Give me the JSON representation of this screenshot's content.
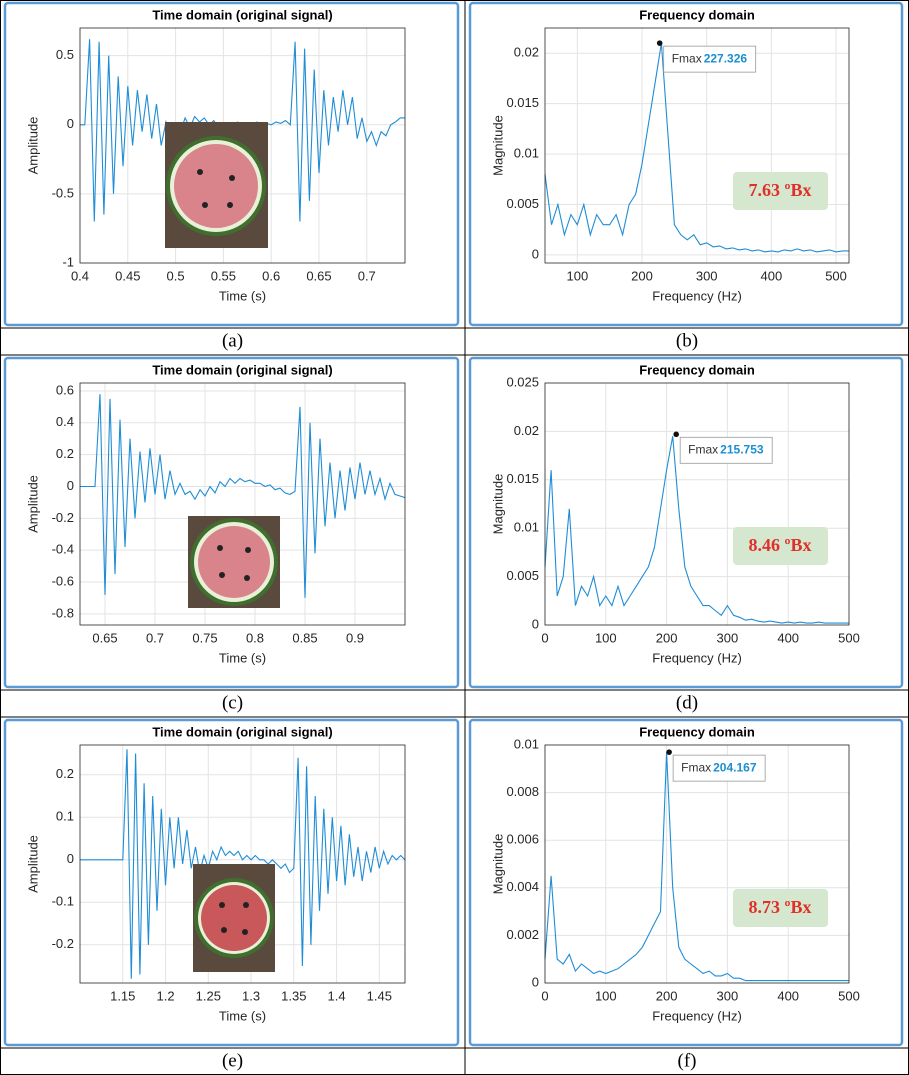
{
  "chart_data": [
    {
      "type": "line",
      "title": "Time domain (original signal)",
      "xlabel": "Time (s)",
      "ylabel": "Amplitude",
      "caption": "(a)",
      "color": "#1f8dd6",
      "grid": true,
      "xlim": [
        0.4,
        0.74
      ],
      "ylim": [
        -1,
        0.7
      ],
      "xticks": [
        0.4,
        0.45,
        0.5,
        0.55,
        0.6,
        0.65,
        0.7
      ],
      "yticks": [
        -1,
        -0.5,
        0,
        0.5
      ],
      "x": [
        0.4,
        0.405,
        0.41,
        0.415,
        0.42,
        0.425,
        0.43,
        0.435,
        0.44,
        0.445,
        0.45,
        0.455,
        0.46,
        0.465,
        0.47,
        0.475,
        0.48,
        0.485,
        0.49,
        0.495,
        0.5,
        0.505,
        0.51,
        0.515,
        0.52,
        0.525,
        0.53,
        0.535,
        0.54,
        0.545,
        0.55,
        0.555,
        0.56,
        0.565,
        0.57,
        0.575,
        0.58,
        0.585,
        0.59,
        0.595,
        0.6,
        0.605,
        0.61,
        0.615,
        0.62,
        0.625,
        0.63,
        0.635,
        0.64,
        0.645,
        0.65,
        0.655,
        0.66,
        0.665,
        0.67,
        0.675,
        0.68,
        0.685,
        0.69,
        0.695,
        0.7,
        0.705,
        0.71,
        0.715,
        0.72,
        0.725,
        0.73,
        0.735,
        0.74
      ],
      "values": [
        0,
        0,
        0.62,
        -0.7,
        0.6,
        -0.65,
        0.5,
        -0.5,
        0.35,
        -0.3,
        0.28,
        -0.15,
        0.25,
        -0.05,
        0.22,
        -0.1,
        0.15,
        -0.15,
        0.02,
        -0.08,
        -0.02,
        -0.05,
        0.05,
        -0.02,
        0.06,
        0.02,
        0.05,
        0,
        0.03,
        -0.02,
        0.01,
        -0.01,
        0,
        0.02,
        0,
        0.01,
        0,
        0.02,
        0,
        0.01,
        0,
        0.02,
        0.01,
        0.03,
        0,
        0.6,
        -0.7,
        0.55,
        -0.55,
        0.4,
        -0.35,
        0.25,
        -0.15,
        0.2,
        -0.05,
        0.25,
        0,
        0.2,
        -0.1,
        0.05,
        -0.12,
        -0.05,
        -0.15,
        -0.05,
        -0.08,
        0,
        0.02,
        0.05,
        0.05
      ]
    },
    {
      "type": "line",
      "title": "Frequency domain",
      "xlabel": "Frequency (Hz)",
      "ylabel": "Magnitude",
      "caption": "(b)",
      "color": "#1f8dd6",
      "grid": true,
      "xlim": [
        50,
        520
      ],
      "ylim": [
        -0.0008,
        0.0225
      ],
      "xticks": [
        100,
        200,
        300,
        400,
        500
      ],
      "yticks": [
        0,
        0.005,
        0.01,
        0.015,
        0.02
      ],
      "x": [
        50,
        60,
        70,
        80,
        90,
        100,
        110,
        120,
        130,
        140,
        150,
        160,
        170,
        180,
        190,
        200,
        210,
        220,
        230,
        240,
        250,
        260,
        270,
        280,
        290,
        300,
        310,
        320,
        330,
        340,
        350,
        360,
        370,
        380,
        390,
        400,
        410,
        420,
        430,
        440,
        450,
        460,
        470,
        480,
        490,
        500,
        510,
        520
      ],
      "values": [
        0.008,
        0.003,
        0.005,
        0.002,
        0.004,
        0.003,
        0.005,
        0.002,
        0.004,
        0.003,
        0.003,
        0.004,
        0.002,
        0.005,
        0.006,
        0.009,
        0.013,
        0.017,
        0.021,
        0.012,
        0.003,
        0.002,
        0.0015,
        0.002,
        0.001,
        0.0012,
        0.0008,
        0.0009,
        0.0006,
        0.0007,
        0.0005,
        0.0006,
        0.0004,
        0.0005,
        0.0003,
        0.0004,
        0.0003,
        0.0005,
        0.0004,
        0.0006,
        0.0004,
        0.0005,
        0.0003,
        0.0004,
        0.0005,
        0.0003,
        0.0004,
        0.0004
      ],
      "datatip": {
        "label": "Fmax",
        "x": 227.326,
        "y": 0.021
      },
      "annotation": "7.63 ºBx"
    },
    {
      "type": "line",
      "title": "Time domain (original signal)",
      "xlabel": "Time (s)",
      "ylabel": "Amplitude",
      "caption": "(c)",
      "color": "#1f8dd6",
      "grid": true,
      "xlim": [
        0.625,
        0.95
      ],
      "ylim": [
        -0.87,
        0.65
      ],
      "xticks": [
        0.65,
        0.7,
        0.75,
        0.8,
        0.85,
        0.9
      ],
      "yticks": [
        -0.8,
        -0.6,
        -0.4,
        -0.2,
        0,
        0.2,
        0.4,
        0.6
      ],
      "x": [
        0.625,
        0.63,
        0.635,
        0.64,
        0.645,
        0.65,
        0.655,
        0.66,
        0.665,
        0.67,
        0.675,
        0.68,
        0.685,
        0.69,
        0.695,
        0.7,
        0.705,
        0.71,
        0.715,
        0.72,
        0.725,
        0.73,
        0.735,
        0.74,
        0.745,
        0.75,
        0.755,
        0.76,
        0.765,
        0.77,
        0.775,
        0.78,
        0.785,
        0.79,
        0.795,
        0.8,
        0.805,
        0.81,
        0.815,
        0.82,
        0.825,
        0.83,
        0.835,
        0.84,
        0.845,
        0.85,
        0.855,
        0.86,
        0.865,
        0.87,
        0.875,
        0.88,
        0.885,
        0.89,
        0.895,
        0.9,
        0.905,
        0.91,
        0.915,
        0.92,
        0.925,
        0.93,
        0.935,
        0.94,
        0.945,
        0.95
      ],
      "values": [
        0,
        0,
        0,
        0,
        0.58,
        -0.68,
        0.55,
        -0.55,
        0.42,
        -0.38,
        0.3,
        -0.2,
        0.22,
        -0.1,
        0.24,
        -0.05,
        0.2,
        -0.08,
        0.1,
        -0.05,
        0.02,
        -0.05,
        -0.03,
        -0.08,
        -0.02,
        -0.06,
        0,
        -0.04,
        0.03,
        0,
        0.05,
        0.02,
        0.05,
        0.03,
        0.04,
        0.02,
        0.02,
        0,
        0.01,
        -0.02,
        -0.01,
        -0.04,
        -0.05,
        -0.03,
        0.5,
        -0.7,
        0.4,
        -0.42,
        0.3,
        -0.25,
        0.15,
        -0.2,
        0.1,
        -0.15,
        0.12,
        -0.08,
        0.15,
        -0.05,
        0.1,
        -0.05,
        0.05,
        -0.08,
        0.02,
        -0.05,
        -0.06,
        -0.07
      ]
    },
    {
      "type": "line",
      "title": "Frequency domain",
      "xlabel": "Frequency (Hz)",
      "ylabel": "Magnitude",
      "caption": "(d)",
      "color": "#1f8dd6",
      "grid": true,
      "xlim": [
        0,
        500
      ],
      "ylim": [
        0,
        0.025
      ],
      "xticks": [
        0,
        100,
        200,
        300,
        400,
        500
      ],
      "yticks": [
        0,
        0.005,
        0.01,
        0.015,
        0.02,
        0.025
      ],
      "x": [
        0,
        10,
        20,
        30,
        40,
        50,
        60,
        70,
        80,
        90,
        100,
        110,
        120,
        130,
        140,
        150,
        160,
        170,
        180,
        190,
        200,
        210,
        220,
        230,
        240,
        250,
        260,
        270,
        280,
        290,
        300,
        310,
        320,
        330,
        340,
        350,
        360,
        370,
        380,
        390,
        400,
        410,
        420,
        430,
        440,
        450,
        460,
        470,
        480,
        490,
        500
      ],
      "values": [
        0.006,
        0.016,
        0.003,
        0.005,
        0.012,
        0.002,
        0.004,
        0.003,
        0.005,
        0.002,
        0.003,
        0.002,
        0.004,
        0.002,
        0.003,
        0.004,
        0.005,
        0.006,
        0.008,
        0.012,
        0.016,
        0.0195,
        0.012,
        0.006,
        0.004,
        0.003,
        0.002,
        0.002,
        0.0015,
        0.001,
        0.002,
        0.001,
        0.0008,
        0.0005,
        0.0006,
        0.0004,
        0.0003,
        0.0004,
        0.0003,
        0.0002,
        0.0003,
        0.0002,
        0.0003,
        0.0002,
        0.0002,
        0.0003,
        0.0002,
        0.0002,
        0.0002,
        0.0002,
        0.0002
      ],
      "datatip": {
        "label": "Fmax",
        "x": 215.753,
        "y": 0.0197
      },
      "annotation": "8.46 ºBx"
    },
    {
      "type": "line",
      "title": "Time domain (original signal)",
      "xlabel": "Time (s)",
      "ylabel": "Amplitude",
      "caption": "(e)",
      "color": "#1f8dd6",
      "grid": true,
      "xlim": [
        1.1,
        1.48
      ],
      "ylim": [
        -0.29,
        0.27
      ],
      "xticks": [
        1.15,
        1.2,
        1.25,
        1.3,
        1.35,
        1.4,
        1.45
      ],
      "yticks": [
        -0.2,
        -0.1,
        0,
        0.1,
        0.2
      ],
      "x": [
        1.1,
        1.105,
        1.11,
        1.115,
        1.12,
        1.125,
        1.13,
        1.135,
        1.14,
        1.145,
        1.15,
        1.155,
        1.16,
        1.165,
        1.17,
        1.175,
        1.18,
        1.185,
        1.19,
        1.195,
        1.2,
        1.205,
        1.21,
        1.215,
        1.22,
        1.225,
        1.23,
        1.235,
        1.24,
        1.245,
        1.25,
        1.255,
        1.26,
        1.265,
        1.27,
        1.275,
        1.28,
        1.285,
        1.29,
        1.295,
        1.3,
        1.305,
        1.31,
        1.315,
        1.32,
        1.325,
        1.33,
        1.335,
        1.34,
        1.345,
        1.35,
        1.355,
        1.36,
        1.365,
        1.37,
        1.375,
        1.38,
        1.385,
        1.39,
        1.395,
        1.4,
        1.405,
        1.41,
        1.415,
        1.42,
        1.425,
        1.43,
        1.435,
        1.44,
        1.445,
        1.45,
        1.455,
        1.46,
        1.465,
        1.47,
        1.475,
        1.48
      ],
      "values": [
        0,
        0,
        0,
        0,
        0,
        0,
        0,
        0,
        0,
        0,
        0,
        0.26,
        -0.28,
        0.25,
        -0.27,
        0.18,
        -0.2,
        0.15,
        -0.12,
        0.12,
        -0.06,
        0.1,
        -0.02,
        0.1,
        -0.01,
        0.07,
        -0.02,
        0.03,
        -0.03,
        0.01,
        -0.02,
        0.02,
        0,
        0.03,
        0.01,
        0.02,
        0.01,
        0.02,
        0,
        0.01,
        0,
        0.01,
        0,
        0,
        -0.01,
        0,
        -0.01,
        -0.02,
        -0.01,
        -0.03,
        -0.02,
        0.24,
        -0.25,
        0.22,
        -0.2,
        0.15,
        -0.12,
        0.12,
        -0.08,
        0.1,
        -0.05,
        0.08,
        -0.06,
        0.06,
        -0.04,
        0.03,
        -0.05,
        0.02,
        -0.03,
        0.03,
        -0.02,
        0.02,
        -0.01,
        0.01,
        0,
        0.01,
        0
      ]
    },
    {
      "type": "line",
      "title": "Frequency domain",
      "xlabel": "Frequency (Hz)",
      "ylabel": "Magnitude",
      "caption": "(f)",
      "color": "#1f8dd6",
      "grid": true,
      "xlim": [
        0,
        500
      ],
      "ylim": [
        0,
        0.01
      ],
      "xticks": [
        0,
        100,
        200,
        300,
        400,
        500
      ],
      "yticks": [
        0,
        0.002,
        0.004,
        0.006,
        0.008,
        0.01
      ],
      "x": [
        0,
        10,
        20,
        30,
        40,
        50,
        60,
        70,
        80,
        90,
        100,
        110,
        120,
        130,
        140,
        150,
        160,
        170,
        180,
        190,
        200,
        210,
        220,
        230,
        240,
        250,
        260,
        270,
        280,
        290,
        300,
        310,
        320,
        330,
        340,
        350,
        360,
        370,
        380,
        390,
        400,
        410,
        420,
        430,
        440,
        450,
        460,
        470,
        480,
        490,
        500
      ],
      "values": [
        0.001,
        0.0045,
        0.001,
        0.0008,
        0.0012,
        0.0005,
        0.0008,
        0.0006,
        0.0004,
        0.0005,
        0.0004,
        0.0005,
        0.0006,
        0.0008,
        0.001,
        0.0012,
        0.0015,
        0.002,
        0.0025,
        0.003,
        0.0097,
        0.004,
        0.0015,
        0.001,
        0.0008,
        0.0006,
        0.0004,
        0.0005,
        0.0003,
        0.0003,
        0.0004,
        0.0002,
        0.0002,
        0.0001,
        0.0001,
        0.0001,
        0.0001,
        0.0001,
        0.0001,
        0.0001,
        0.0001,
        0.0001,
        0.0001,
        0.0001,
        0.0001,
        0.0001,
        0.0001,
        0.0001,
        0.0001,
        0.0001,
        0.0001
      ],
      "datatip": {
        "label": "Fmax",
        "x": 204.167,
        "y": 0.0097
      },
      "annotation": "8.73 ºBx"
    }
  ]
}
